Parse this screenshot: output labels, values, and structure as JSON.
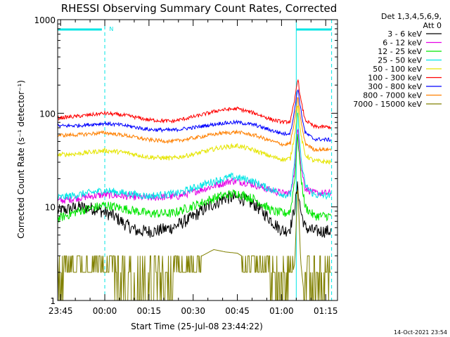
{
  "chart_data": {
    "type": "line",
    "title": "RHESSI Observing Summary Count Rates, Corrected",
    "xlabel": "Start Time (25-Jul-08 23:44:22)",
    "ylabel": "Corrected Count Rate (s⁻¹ detector⁻¹)",
    "ylog": true,
    "ylim": [
      1,
      1000
    ],
    "xlim_minutes": [
      -1,
      94
    ],
    "x_ticks": [
      {
        "t": 0,
        "label": "23:45"
      },
      {
        "t": 15,
        "label": "00:00"
      },
      {
        "t": 30,
        "label": "00:15"
      },
      {
        "t": 45,
        "label": "00:30"
      },
      {
        "t": 60,
        "label": "00:45"
      },
      {
        "t": 75,
        "label": "01:00"
      },
      {
        "t": 90,
        "label": "01:15"
      }
    ],
    "y_ticks": [
      {
        "v": 1,
        "label": "1"
      },
      {
        "v": 10,
        "label": "10"
      },
      {
        "v": 100,
        "label": "100"
      },
      {
        "v": 1000,
        "label": "1000"
      }
    ],
    "legend": {
      "header1": "Det 1,3,4,5,6,9,",
      "header2": "Att 0",
      "placement": "right"
    },
    "series": [
      {
        "name": "3 - 6 keV",
        "color": "#000000",
        "noise": 0.07,
        "points": [
          [
            -1,
            9
          ],
          [
            3,
            9.5
          ],
          [
            6,
            10
          ],
          [
            12,
            9.5
          ],
          [
            18,
            8
          ],
          [
            22,
            6.5
          ],
          [
            26,
            5.5
          ],
          [
            32,
            5.5
          ],
          [
            38,
            6
          ],
          [
            44,
            7.5
          ],
          [
            50,
            10
          ],
          [
            56,
            12.5
          ],
          [
            61,
            12.5
          ],
          [
            66,
            10.5
          ],
          [
            70,
            8
          ],
          [
            74,
            6
          ],
          [
            76,
            5.5
          ],
          [
            78,
            6
          ],
          [
            79.5,
            10
          ],
          [
            80.5,
            17
          ],
          [
            81.5,
            9
          ],
          [
            83,
            6
          ],
          [
            86,
            5.5
          ],
          [
            92,
            5.5
          ]
        ]
      },
      {
        "name": "6 - 12 keV",
        "color": "#e600e6",
        "noise": 0.04,
        "points": [
          [
            -1,
            11.5
          ],
          [
            6,
            12.5
          ],
          [
            15,
            13.5
          ],
          [
            22,
            13
          ],
          [
            30,
            12.5
          ],
          [
            40,
            13
          ],
          [
            50,
            16
          ],
          [
            58,
            19
          ],
          [
            64,
            18
          ],
          [
            70,
            15.5
          ],
          [
            75,
            14
          ],
          [
            78,
            14
          ],
          [
            79.5,
            25
          ],
          [
            80.5,
            80
          ],
          [
            81.5,
            28
          ],
          [
            83,
            16
          ],
          [
            86,
            14
          ],
          [
            92,
            14
          ]
        ]
      },
      {
        "name": "12 - 25 keV",
        "color": "#00e600",
        "noise": 0.05,
        "points": [
          [
            -1,
            7.5
          ],
          [
            6,
            9
          ],
          [
            15,
            10.5
          ],
          [
            22,
            9.5
          ],
          [
            30,
            8.5
          ],
          [
            38,
            8.5
          ],
          [
            46,
            10.5
          ],
          [
            54,
            13
          ],
          [
            60,
            14
          ],
          [
            66,
            12
          ],
          [
            72,
            9
          ],
          [
            76,
            8.5
          ],
          [
            78,
            9
          ],
          [
            79.5,
            20
          ],
          [
            80.5,
            60
          ],
          [
            81.5,
            22
          ],
          [
            83,
            10
          ],
          [
            86,
            8
          ],
          [
            92,
            8
          ]
        ]
      },
      {
        "name": "25 - 50 keV",
        "color": "#00e5e5",
        "noise": 0.04,
        "points": [
          [
            -1,
            12.5
          ],
          [
            6,
            13.5
          ],
          [
            15,
            15
          ],
          [
            22,
            14
          ],
          [
            30,
            13
          ],
          [
            40,
            14
          ],
          [
            50,
            18
          ],
          [
            58,
            21
          ],
          [
            64,
            19.5
          ],
          [
            70,
            16
          ],
          [
            76,
            13.5
          ],
          [
            78,
            13.5
          ],
          [
            79.5,
            30
          ],
          [
            80.5,
            105
          ],
          [
            81.5,
            35
          ],
          [
            83,
            17
          ],
          [
            86,
            13.5
          ],
          [
            92,
            13
          ]
        ]
      },
      {
        "name": "50 - 100 keV",
        "color": "#e5e500",
        "noise": 0.025,
        "points": [
          [
            -1,
            36
          ],
          [
            6,
            37
          ],
          [
            15,
            40
          ],
          [
            22,
            38
          ],
          [
            30,
            34
          ],
          [
            38,
            33
          ],
          [
            46,
            37
          ],
          [
            54,
            43
          ],
          [
            60,
            45
          ],
          [
            66,
            40
          ],
          [
            72,
            34
          ],
          [
            76,
            32
          ],
          [
            78,
            33
          ],
          [
            79.5,
            60
          ],
          [
            80.5,
            125
          ],
          [
            81.5,
            60
          ],
          [
            83,
            36
          ],
          [
            86,
            31
          ],
          [
            92,
            30
          ]
        ]
      },
      {
        "name": "100 - 300 keV",
        "color": "#ff0000",
        "noise": 0.02,
        "points": [
          [
            -1,
            89
          ],
          [
            6,
            93
          ],
          [
            15,
            100
          ],
          [
            22,
            95
          ],
          [
            30,
            85
          ],
          [
            38,
            82
          ],
          [
            46,
            93
          ],
          [
            54,
            108
          ],
          [
            60,
            112
          ],
          [
            66,
            100
          ],
          [
            72,
            85
          ],
          [
            76,
            80
          ],
          [
            78,
            82
          ],
          [
            79.5,
            140
          ],
          [
            80.5,
            240
          ],
          [
            81.5,
            140
          ],
          [
            83,
            85
          ],
          [
            86,
            72
          ],
          [
            92,
            71
          ]
        ]
      },
      {
        "name": "300 - 800 keV",
        "color": "#0000ff",
        "noise": 0.02,
        "points": [
          [
            -1,
            73
          ],
          [
            6,
            74
          ],
          [
            15,
            78
          ],
          [
            22,
            74
          ],
          [
            30,
            67
          ],
          [
            38,
            66
          ],
          [
            46,
            71
          ],
          [
            54,
            78
          ],
          [
            60,
            80
          ],
          [
            66,
            75
          ],
          [
            72,
            65
          ],
          [
            76,
            60
          ],
          [
            78,
            62
          ],
          [
            79.5,
            110
          ],
          [
            80.5,
            190
          ],
          [
            81.5,
            110
          ],
          [
            83,
            62
          ],
          [
            86,
            53
          ],
          [
            92,
            52
          ]
        ]
      },
      {
        "name": "800 - 7000 keV",
        "color": "#ff8000",
        "noise": 0.02,
        "points": [
          [
            -1,
            58
          ],
          [
            6,
            59
          ],
          [
            15,
            62
          ],
          [
            22,
            58
          ],
          [
            30,
            52
          ],
          [
            38,
            50
          ],
          [
            46,
            55
          ],
          [
            54,
            61
          ],
          [
            60,
            63
          ],
          [
            66,
            58
          ],
          [
            72,
            50
          ],
          [
            76,
            46
          ],
          [
            78,
            48
          ],
          [
            79.5,
            85
          ],
          [
            80.5,
            150
          ],
          [
            81.5,
            85
          ],
          [
            83,
            48
          ],
          [
            86,
            41
          ],
          [
            92,
            41
          ]
        ]
      },
      {
        "name": "7000 - 15000 keV",
        "color": "#808000",
        "noise": 0,
        "points": [
          [
            -1,
            1
          ],
          [
            2,
            1.8
          ],
          [
            6,
            2.4
          ],
          [
            10,
            2.4
          ],
          [
            12,
            2.8
          ],
          [
            14,
            2.4
          ],
          [
            16,
            2.0
          ],
          [
            18,
            1.4
          ],
          [
            20,
            1.2
          ],
          [
            26,
            1.15
          ],
          [
            32,
            1.2
          ],
          [
            38,
            1.3
          ],
          [
            40,
            1.8
          ],
          [
            44,
            2.3
          ],
          [
            48,
            3.0
          ],
          [
            52,
            3.5
          ],
          [
            56,
            3.3
          ],
          [
            60,
            3.2
          ],
          [
            63,
            2.8
          ],
          [
            66,
            2.2
          ],
          [
            70,
            1.6
          ],
          [
            74,
            1.2
          ],
          [
            77,
            1.1
          ],
          [
            79.5,
            2.5
          ],
          [
            80.5,
            18
          ],
          [
            81.5,
            2.6
          ],
          [
            82.5,
            1.3
          ],
          [
            86,
            1.2
          ],
          [
            90,
            1.4
          ],
          [
            92,
            1.5
          ]
        ]
      }
    ],
    "cyan_markers": {
      "solid_x": [
        -1,
        80
      ],
      "dashed_x": [
        15,
        92
      ],
      "bar_segments": [
        [
          -1,
          14
        ],
        [
          80,
          92
        ]
      ],
      "bar_label": "N",
      "bar_label_t": 16.5
    }
  },
  "footer": {
    "timestamp": "14-Oct-2021 23:54"
  }
}
